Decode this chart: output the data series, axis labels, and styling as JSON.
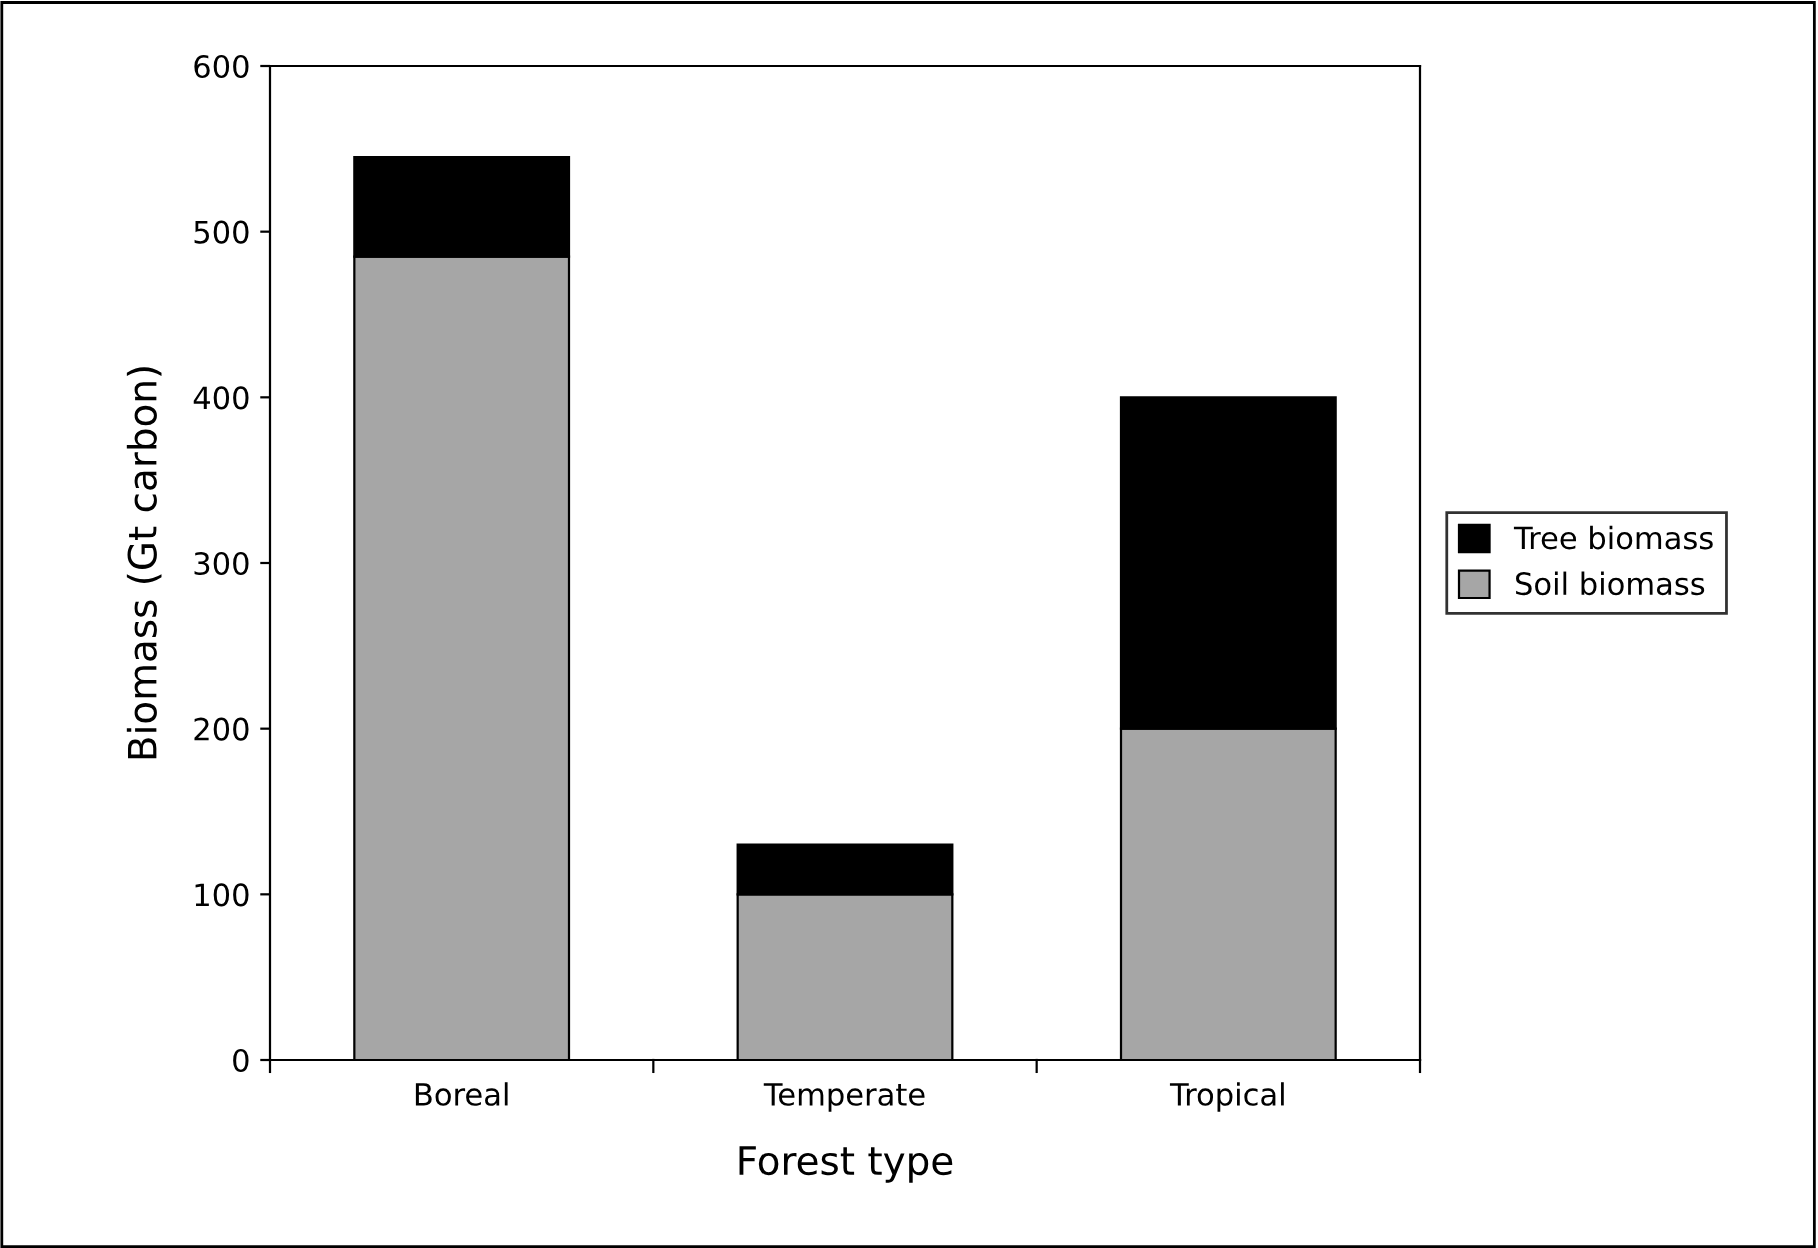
{
  "chart_data": {
    "type": "bar",
    "stacked": true,
    "xlabel": "Forest type",
    "ylabel": "Biomass (Gt carbon)",
    "categories": [
      "Boreal",
      "Temperate",
      "Tropical"
    ],
    "series": [
      {
        "name": "Soil biomass",
        "color": "#a6a6a6",
        "values": [
          485,
          100,
          200
        ]
      },
      {
        "name": "Tree biomass",
        "color": "#000000",
        "values": [
          60,
          30,
          200
        ]
      }
    ],
    "ylim": [
      0,
      600
    ],
    "yticks": [
      0,
      100,
      200,
      300,
      400,
      500,
      600
    ],
    "grid": false,
    "legend": "right"
  }
}
